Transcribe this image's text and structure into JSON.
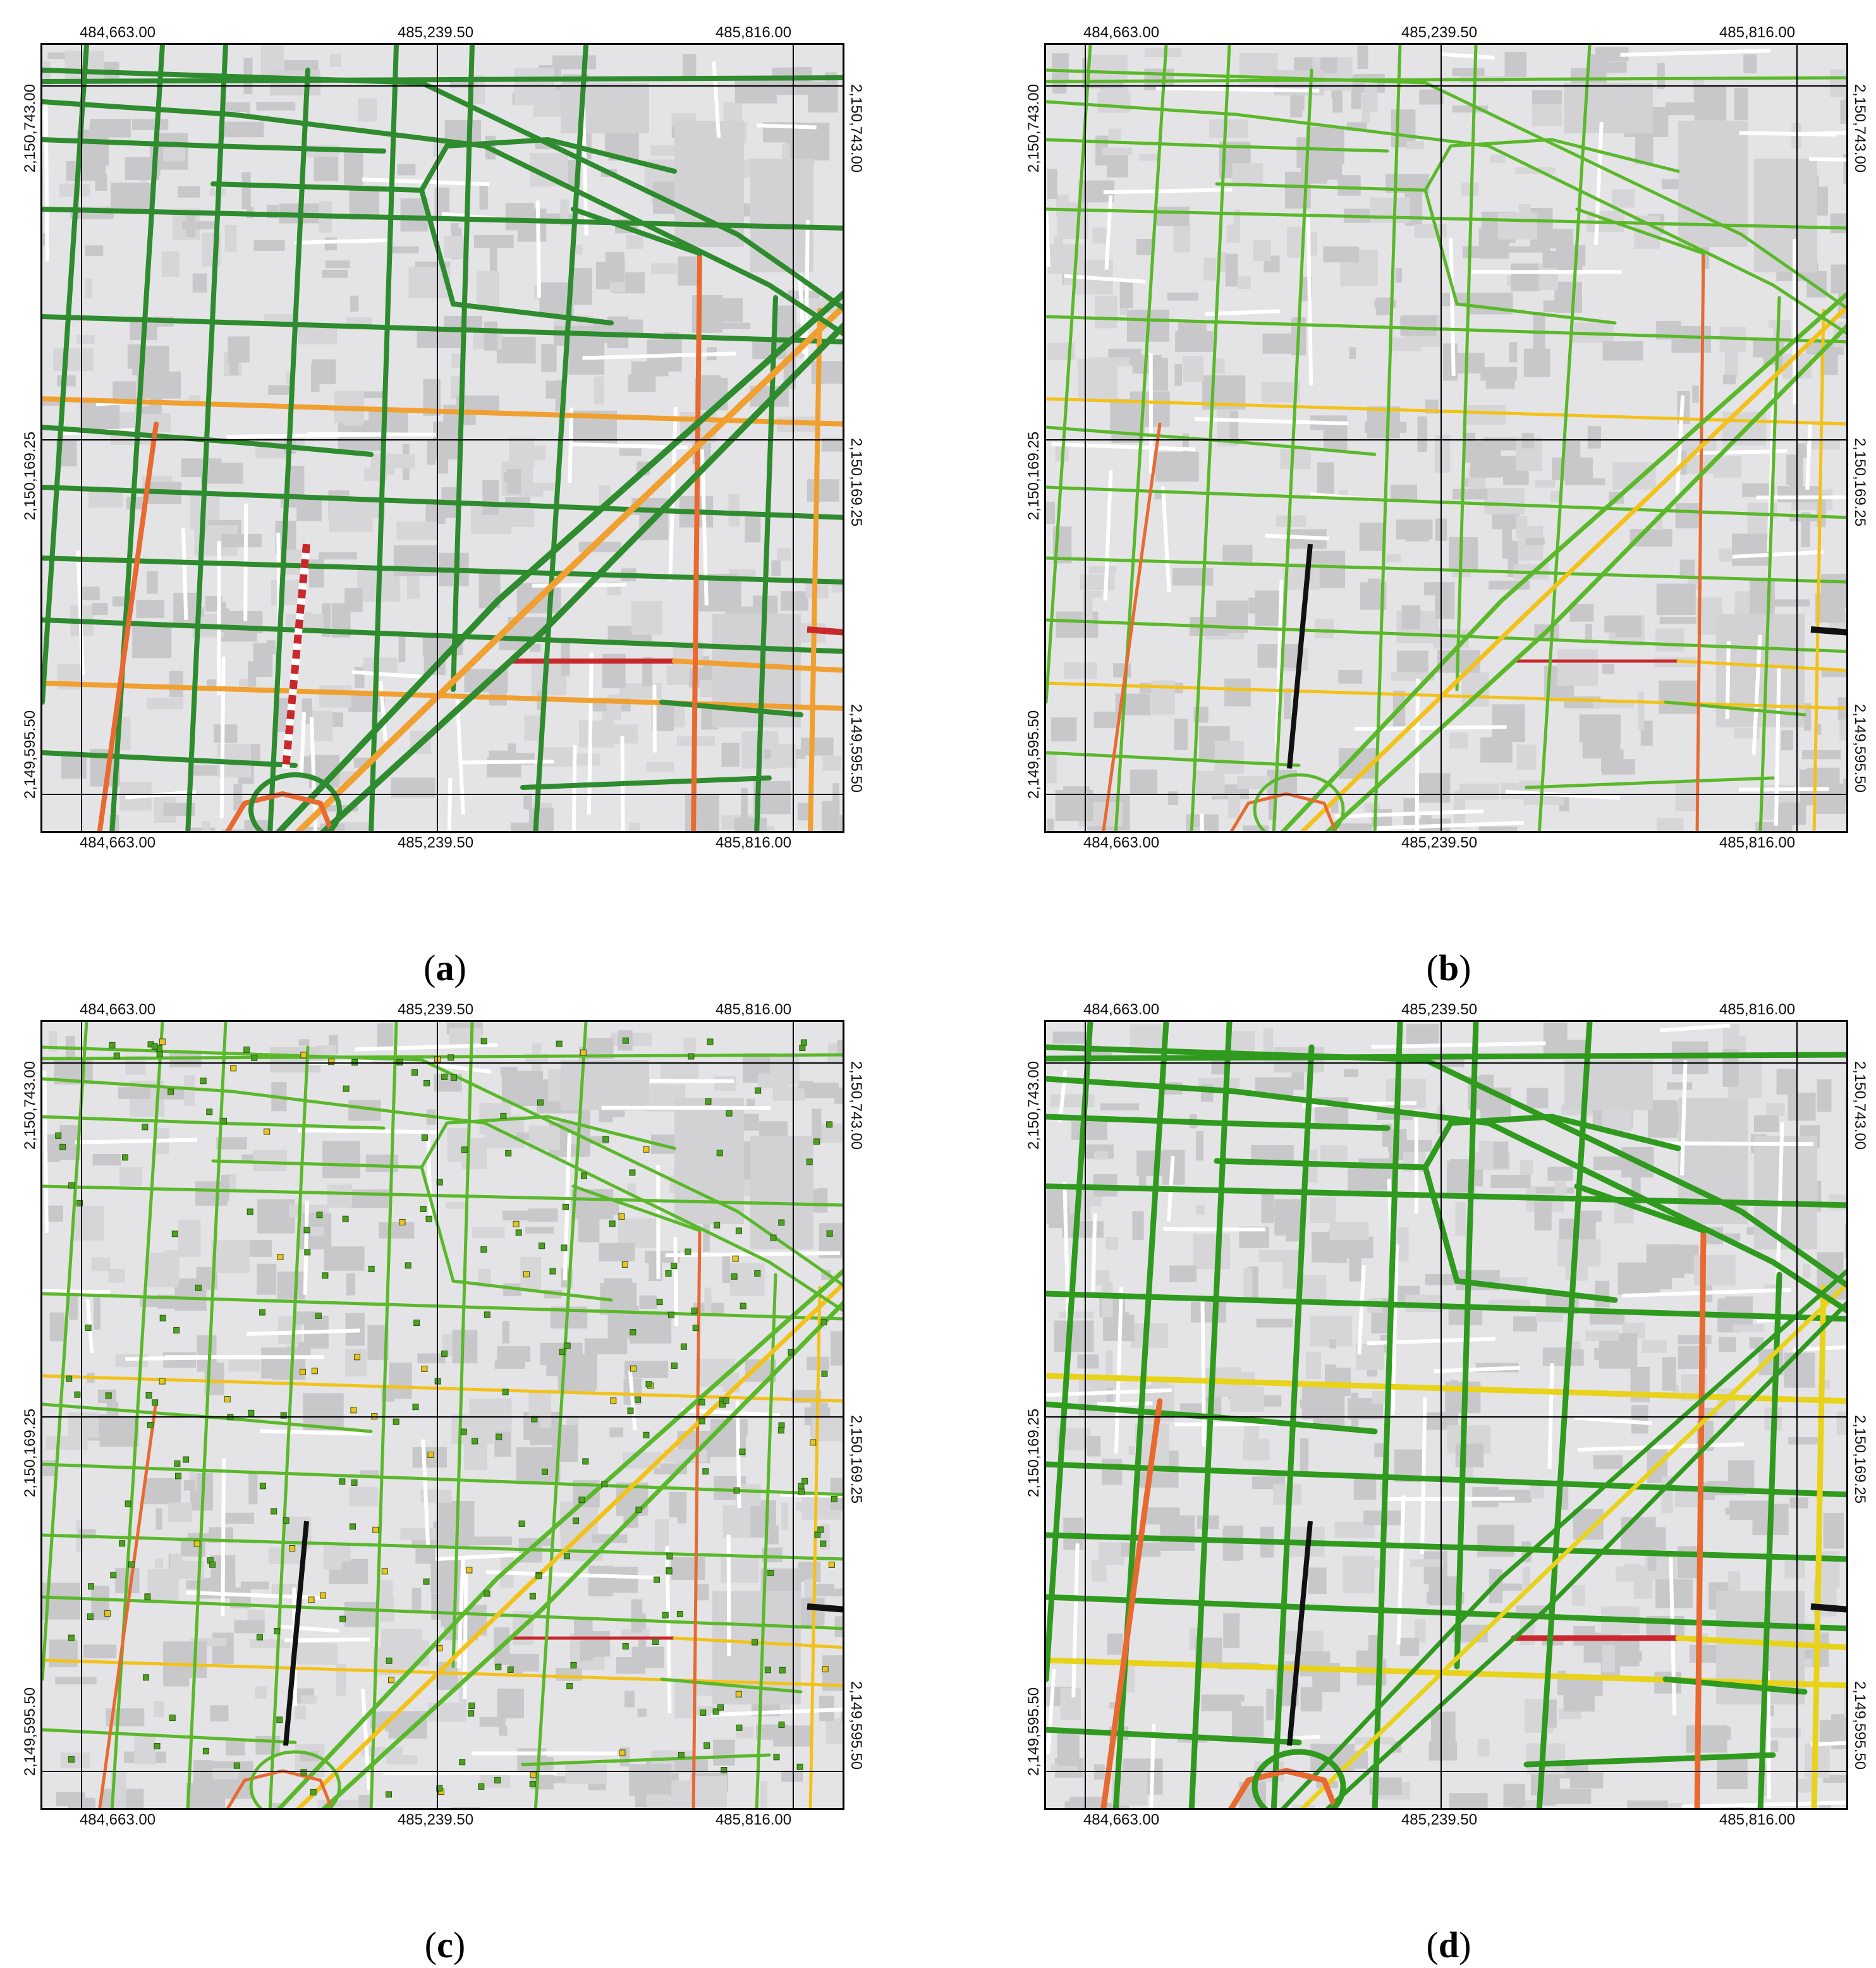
{
  "axes": {
    "x_ticks": [
      "484,663.00",
      "485,239.50",
      "485,816.00"
    ],
    "y_ticks": [
      "2,150,743.00",
      "2,150,169.25",
      "2,149,595.50"
    ]
  },
  "legend_colors": {
    "free_flow": "#2e8b2e",
    "light": "#5ab82a",
    "moderate": "#f0a030",
    "slow": "#e86a30",
    "congested": "#c8282c",
    "blocked": "#111111",
    "map_background": "#e4e4e6",
    "building": "#c8c8ca",
    "minor_street": "#ffffff"
  },
  "panels": [
    {
      "id": "a",
      "caption": "(a)",
      "style": "a"
    },
    {
      "id": "b",
      "caption": "(b)",
      "style": "b"
    },
    {
      "id": "c",
      "caption": "(c)",
      "style": "c"
    },
    {
      "id": "d",
      "caption": "(d)",
      "style": "d"
    }
  ]
}
